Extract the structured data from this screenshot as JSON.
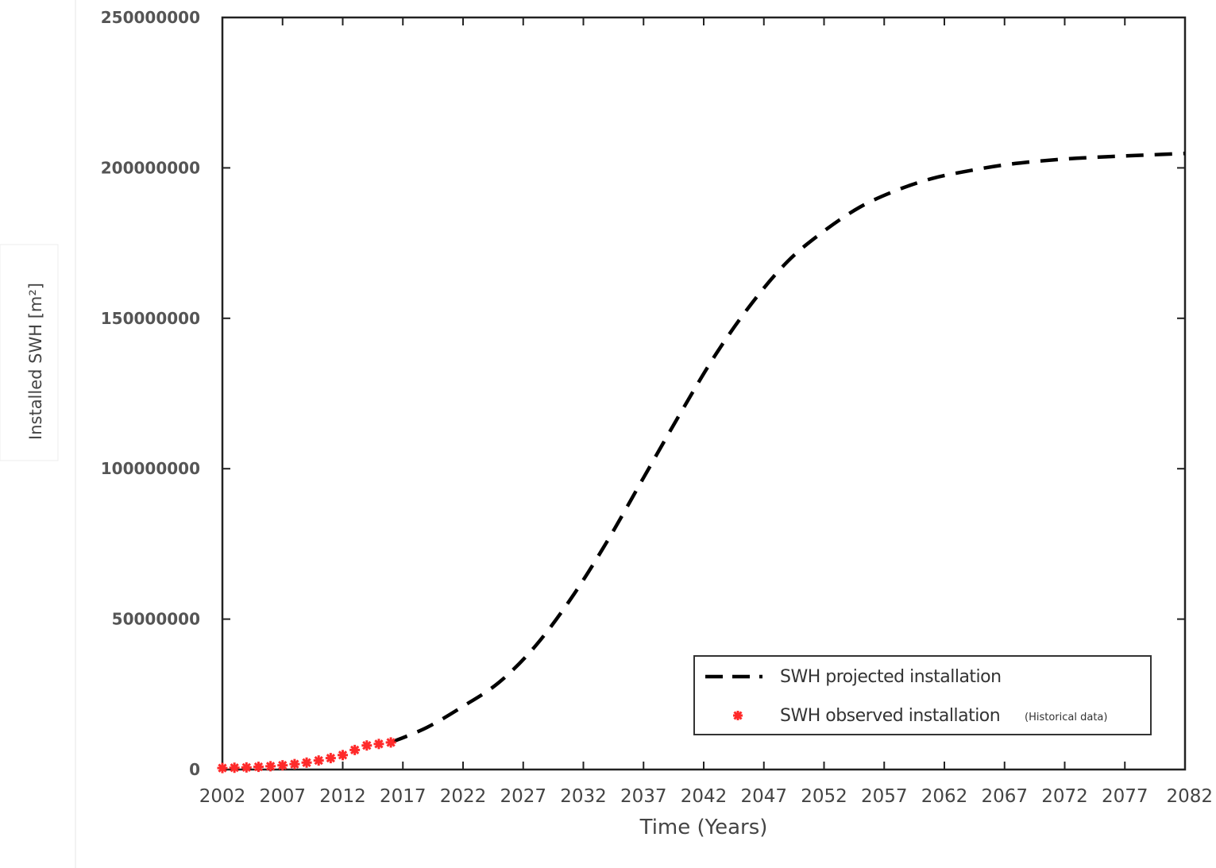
{
  "chart_data": {
    "type": "line",
    "title": "",
    "xlabel": "Time (Years)",
    "ylabel": "Installed SWH [m²]",
    "xlim": [
      2002,
      2082
    ],
    "ylim": [
      0,
      250000000
    ],
    "x_ticks": [
      "2002",
      "2007",
      "2012",
      "2017",
      "2022",
      "2027",
      "2032",
      "2037",
      "2042",
      "2047",
      "2052",
      "2057",
      "2062",
      "2067",
      "2072",
      "2077",
      "2082"
    ],
    "y_ticks": [
      "0",
      "50000000",
      "100000000",
      "150000000",
      "200000000",
      "250000000"
    ],
    "grid": false,
    "legend_position": "bottom-right",
    "series": [
      {
        "name": "SWH projected installation",
        "style": "dashed",
        "color": "#000000",
        "x": [
          2016,
          2019,
          2022,
          2025,
          2028,
          2031,
          2034,
          2037,
          2040,
          2043,
          2046,
          2049,
          2052,
          2055,
          2058,
          2061,
          2064,
          2067,
          2070,
          2073,
          2076,
          2079,
          2082
        ],
        "y": [
          9000000,
          14000000,
          21000000,
          29000000,
          41000000,
          57000000,
          76000000,
          97000000,
          118000000,
          138000000,
          155000000,
          169000000,
          179000000,
          187000000,
          192500000,
          196500000,
          199000000,
          201000000,
          202300000,
          203200000,
          203800000,
          204300000,
          204800000
        ]
      },
      {
        "name": "SWH observed installation",
        "note": "(Historical data)",
        "style": "markers",
        "color": "#ff2a2a",
        "x": [
          2002,
          2003,
          2004,
          2005,
          2006,
          2007,
          2008,
          2009,
          2010,
          2011,
          2012,
          2013,
          2014,
          2015,
          2016
        ],
        "y": [
          500000,
          600000,
          700000,
          900000,
          1100000,
          1400000,
          1800000,
          2300000,
          3000000,
          3800000,
          4800000,
          6500000,
          8000000,
          8500000,
          9000000
        ]
      }
    ]
  }
}
